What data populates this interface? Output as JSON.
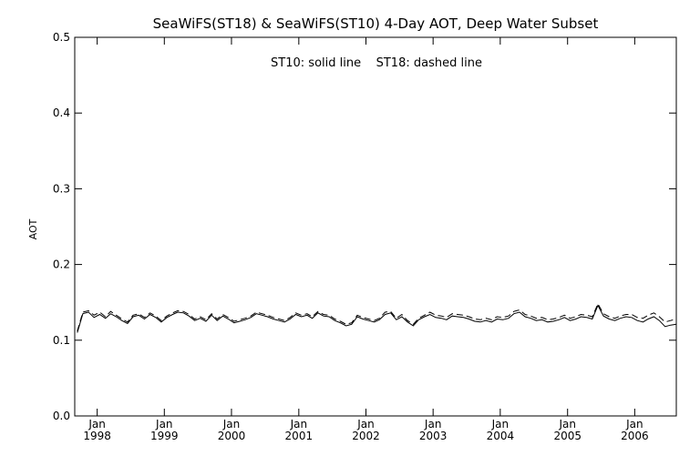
{
  "chart_data": {
    "type": "line",
    "title": "SeaWiFS(ST18) & SeaWiFS(ST10) 4-Day AOT, Deep Water Subset",
    "annotation": "ST10: solid line    ST18: dashed line",
    "xlabel": "",
    "ylabel": "AOT",
    "ylim": [
      0.0,
      0.5
    ],
    "yticks": [
      "0.0",
      "0.1",
      "0.2",
      "0.3",
      "0.4",
      "0.5"
    ],
    "xlim": [
      "1997-09-01",
      "2006-08-15"
    ],
    "xticks": [
      {
        "month": "Jan",
        "year": "1998",
        "date": "1998-01-01"
      },
      {
        "month": "Jan",
        "year": "1999",
        "date": "1999-01-01"
      },
      {
        "month": "Jan",
        "year": "2000",
        "date": "2000-01-01"
      },
      {
        "month": "Jan",
        "year": "2001",
        "date": "2001-01-01"
      },
      {
        "month": "Jan",
        "year": "2002",
        "date": "2002-01-01"
      },
      {
        "month": "Jan",
        "year": "2003",
        "date": "2003-01-01"
      },
      {
        "month": "Jan",
        "year": "2004",
        "date": "2004-01-01"
      },
      {
        "month": "Jan",
        "year": "2005",
        "date": "2005-01-01"
      },
      {
        "month": "Jan",
        "year": "2006",
        "date": "2006-01-01"
      }
    ],
    "grid": false,
    "x": [
      "1997-09-15",
      "1997-10-15",
      "1997-11-15",
      "1997-12-15",
      "1998-01-15",
      "1998-02-15",
      "1998-03-15",
      "1998-04-15",
      "1998-05-15",
      "1998-06-15",
      "1998-07-15",
      "1998-08-15",
      "1998-09-15",
      "1998-10-15",
      "1998-11-15",
      "1998-12-15",
      "1999-01-15",
      "1999-02-15",
      "1999-03-15",
      "1999-04-15",
      "1999-05-15",
      "1999-06-15",
      "1999-07-15",
      "1999-08-15",
      "1999-09-15",
      "1999-10-15",
      "1999-11-15",
      "1999-12-15",
      "2000-01-15",
      "2000-02-15",
      "2000-03-15",
      "2000-04-15",
      "2000-05-15",
      "2000-06-15",
      "2000-07-15",
      "2000-08-15",
      "2000-09-15",
      "2000-10-15",
      "2000-11-15",
      "2000-12-15",
      "2001-01-15",
      "2001-02-15",
      "2001-03-15",
      "2001-04-15",
      "2001-05-15",
      "2001-06-15",
      "2001-07-15",
      "2001-08-15",
      "2001-09-15",
      "2001-10-15",
      "2001-11-15",
      "2001-12-15",
      "2002-01-15",
      "2002-02-15",
      "2002-03-15",
      "2002-04-15",
      "2002-05-15",
      "2002-06-15",
      "2002-07-15",
      "2002-08-15",
      "2002-09-15",
      "2002-10-15",
      "2002-11-15",
      "2002-12-15",
      "2003-01-15",
      "2003-02-15",
      "2003-03-15",
      "2003-04-15",
      "2003-05-15",
      "2003-06-15",
      "2003-07-15",
      "2003-08-15",
      "2003-09-15",
      "2003-10-15",
      "2003-11-15",
      "2003-12-15",
      "2004-01-15",
      "2004-02-15",
      "2004-03-15",
      "2004-04-15",
      "2004-05-15",
      "2004-06-15",
      "2004-07-15",
      "2004-08-15",
      "2004-09-15",
      "2004-10-15",
      "2004-11-15",
      "2004-12-15",
      "2005-01-15",
      "2005-02-15",
      "2005-03-15",
      "2005-04-15",
      "2005-05-15",
      "2005-06-15",
      "2005-07-15",
      "2005-08-15",
      "2005-09-15",
      "2005-10-15",
      "2005-11-15",
      "2005-12-15",
      "2006-01-15",
      "2006-02-15",
      "2006-03-15",
      "2006-04-15",
      "2006-05-15",
      "2006-06-15",
      "2006-07-15",
      "2006-08-15"
    ],
    "series": [
      {
        "name": "ST10",
        "style": "solid",
        "values": [
          0.11,
          0.135,
          0.137,
          0.13,
          0.134,
          0.129,
          0.135,
          0.131,
          0.126,
          0.122,
          0.131,
          0.133,
          0.128,
          0.134,
          0.13,
          0.124,
          0.13,
          0.134,
          0.137,
          0.136,
          0.132,
          0.126,
          0.129,
          0.125,
          0.133,
          0.126,
          0.132,
          0.128,
          0.123,
          0.125,
          0.127,
          0.13,
          0.135,
          0.133,
          0.131,
          0.128,
          0.126,
          0.124,
          0.128,
          0.134,
          0.131,
          0.133,
          0.129,
          0.136,
          0.132,
          0.131,
          0.126,
          0.123,
          0.119,
          0.121,
          0.131,
          0.128,
          0.126,
          0.124,
          0.127,
          0.134,
          0.136,
          0.127,
          0.131,
          0.124,
          0.119,
          0.127,
          0.131,
          0.134,
          0.13,
          0.129,
          0.127,
          0.132,
          0.131,
          0.13,
          0.128,
          0.125,
          0.124,
          0.126,
          0.124,
          0.128,
          0.127,
          0.129,
          0.135,
          0.137,
          0.131,
          0.129,
          0.126,
          0.127,
          0.124,
          0.125,
          0.127,
          0.13,
          0.126,
          0.128,
          0.131,
          0.13,
          0.128,
          0.146,
          0.132,
          0.128,
          0.126,
          0.129,
          0.131,
          0.13,
          0.126,
          0.124,
          0.128,
          0.131,
          0.126,
          0.118,
          0.12,
          0.121
        ]
      },
      {
        "name": "ST18",
        "style": "dashed",
        "values": [
          0.112,
          0.137,
          0.139,
          0.133,
          0.137,
          0.131,
          0.138,
          0.133,
          0.128,
          0.124,
          0.133,
          0.135,
          0.13,
          0.136,
          0.132,
          0.126,
          0.132,
          0.136,
          0.139,
          0.138,
          0.134,
          0.128,
          0.131,
          0.127,
          0.135,
          0.128,
          0.134,
          0.13,
          0.125,
          0.127,
          0.129,
          0.132,
          0.137,
          0.135,
          0.133,
          0.13,
          0.128,
          0.126,
          0.13,
          0.136,
          0.133,
          0.135,
          0.131,
          0.138,
          0.134,
          0.133,
          0.128,
          0.125,
          0.121,
          0.123,
          0.133,
          0.13,
          0.128,
          0.126,
          0.129,
          0.137,
          0.138,
          0.129,
          0.134,
          0.126,
          0.121,
          0.129,
          0.133,
          0.137,
          0.133,
          0.132,
          0.13,
          0.135,
          0.134,
          0.133,
          0.131,
          0.128,
          0.127,
          0.129,
          0.127,
          0.131,
          0.13,
          0.132,
          0.138,
          0.14,
          0.134,
          0.132,
          0.129,
          0.13,
          0.127,
          0.128,
          0.13,
          0.133,
          0.129,
          0.131,
          0.134,
          0.133,
          0.131,
          0.148,
          0.135,
          0.131,
          0.129,
          0.132,
          0.134,
          0.134,
          0.13,
          0.129,
          0.133,
          0.136,
          0.131,
          0.124,
          0.126,
          0.128
        ]
      }
    ]
  }
}
